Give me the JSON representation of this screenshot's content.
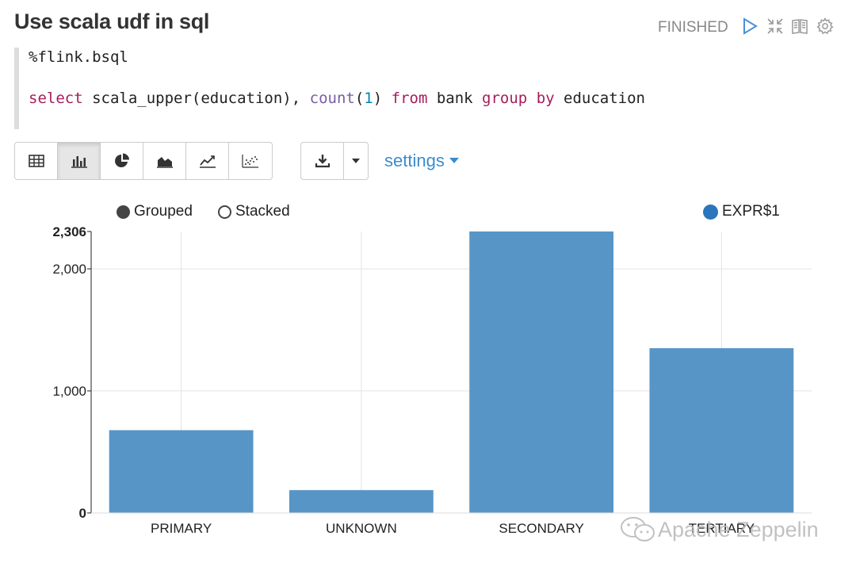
{
  "paragraph": {
    "title": "Use scala udf in sql",
    "status": "FINISHED"
  },
  "header_icons": [
    "run-icon",
    "collapse-icon",
    "book-icon",
    "gear-icon"
  ],
  "code": {
    "line1": "%flink.bsql",
    "line2_tokens": [
      {
        "t": "select",
        "c": "kw"
      },
      {
        "t": " scala_upper(education), ",
        "c": ""
      },
      {
        "t": "count",
        "c": "fn"
      },
      {
        "t": "(",
        "c": ""
      },
      {
        "t": "1",
        "c": "num"
      },
      {
        "t": ") ",
        "c": ""
      },
      {
        "t": "from",
        "c": "kw"
      },
      {
        "t": " bank ",
        "c": ""
      },
      {
        "t": "group",
        "c": "kw"
      },
      {
        "t": " ",
        "c": ""
      },
      {
        "t": "by",
        "c": "kw"
      },
      {
        "t": " education",
        "c": ""
      }
    ]
  },
  "toolbar": {
    "viz_buttons": [
      "table-icon",
      "bar-chart-icon",
      "pie-chart-icon",
      "area-chart-icon",
      "line-chart-icon",
      "scatter-chart-icon"
    ],
    "active_index": 1,
    "settings_label": "settings"
  },
  "legend": {
    "grouped_label": "Grouped",
    "stacked_label": "Stacked",
    "series_label": "EXPR$1"
  },
  "colors": {
    "bar": "#4f8fc4",
    "series_dot": "#2a75bb",
    "accent": "#3b8ccd"
  },
  "chart_data": {
    "type": "bar",
    "categories": [
      "PRIMARY",
      "UNKNOWN",
      "SECONDARY",
      "TERTIARY"
    ],
    "series": [
      {
        "name": "EXPR$1",
        "values": [
          678,
          187,
          2306,
          1350
        ]
      }
    ],
    "ylim": [
      0,
      2306
    ],
    "yticks": [
      0,
      1000,
      2000,
      2306
    ],
    "ytick_labels": [
      "0",
      "1,000",
      "2,000",
      "2,306"
    ],
    "grid": true,
    "legend_position": "top-right"
  },
  "watermark": "Apache Zeppelin"
}
